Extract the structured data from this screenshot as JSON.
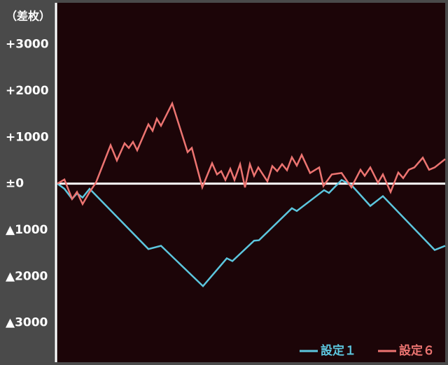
{
  "chart_data": {
    "type": "line",
    "y_axis_title": "（差枚）",
    "xlim": [
      0,
      554
    ],
    "ylim": [
      -3850,
      3900
    ],
    "yticks": [
      {
        "value": 3000,
        "label": "+3000"
      },
      {
        "value": 2000,
        "label": "+2000"
      },
      {
        "value": 1000,
        "label": "+1000"
      },
      {
        "value": 0,
        "label": "±0"
      },
      {
        "value": -1000,
        "label": "▲1000"
      },
      {
        "value": -2000,
        "label": "▲2000"
      },
      {
        "value": -3000,
        "label": "▲3000"
      }
    ],
    "zero_line": true,
    "legend": "bottom-right",
    "series": [
      {
        "name": "設定１",
        "color": "#5cc6de",
        "x": [
          0,
          10,
          21,
          28,
          36,
          46,
          130,
          148,
          208,
          242,
          250,
          281,
          288,
          335,
          342,
          381,
          388,
          406,
          420,
          447,
          465,
          539,
          554
        ],
        "values": [
          0,
          -110,
          -330,
          -210,
          -300,
          -110,
          -1410,
          -1340,
          -2210,
          -1610,
          -1670,
          -1230,
          -1220,
          -530,
          -590,
          -140,
          -200,
          80,
          -30,
          -480,
          -270,
          -1430,
          -1340
        ]
      },
      {
        "name": "設定６",
        "color": "#ec7471",
        "x": [
          0,
          10,
          21,
          28,
          36,
          46,
          55,
          76,
          85,
          96,
          102,
          108,
          114,
          130,
          136,
          142,
          148,
          164,
          186,
          192,
          207,
          221,
          228,
          234,
          240,
          247,
          253,
          261,
          268,
          275,
          281,
          287,
          300,
          307,
          314,
          321,
          328,
          335,
          342,
          349,
          361,
          374,
          380,
          392,
          406,
          420,
          433,
          439,
          447,
          458,
          465,
          476,
          487,
          494,
          502,
          510,
          522,
          531,
          539,
          554
        ],
        "values": [
          0,
          90,
          -330,
          -180,
          -440,
          -180,
          20,
          830,
          500,
          870,
          770,
          900,
          720,
          1280,
          1140,
          1400,
          1250,
          1730,
          680,
          770,
          -80,
          440,
          200,
          270,
          80,
          320,
          80,
          420,
          -80,
          420,
          170,
          350,
          50,
          380,
          270,
          420,
          290,
          570,
          390,
          620,
          230,
          350,
          -50,
          200,
          230,
          -80,
          300,
          170,
          350,
          20,
          200,
          -180,
          240,
          120,
          300,
          350,
          560,
          300,
          350,
          530
        ]
      }
    ]
  }
}
